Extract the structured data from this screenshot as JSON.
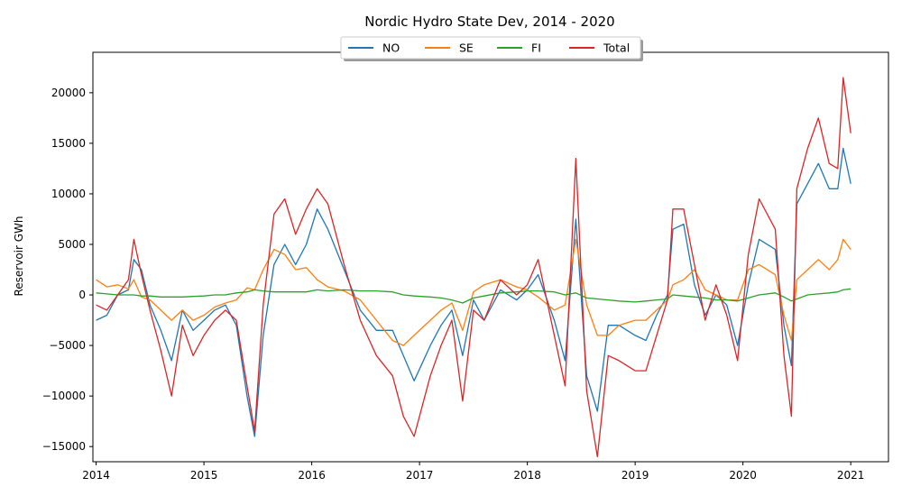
{
  "chart_data": {
    "type": "line",
    "title": "Nordic Hydro State Dev, 2014 - 2020",
    "xlabel": "",
    "ylabel": "Reservoir GWh",
    "xlim": [
      2013.97,
      2021.35
    ],
    "ylim": [
      -16500,
      24000
    ],
    "x_ticks": [
      2014,
      2015,
      2016,
      2017,
      2018,
      2019,
      2020,
      2021
    ],
    "x_tick_labels": [
      "2014",
      "2015",
      "2016",
      "2017",
      "2018",
      "2019",
      "2020",
      "2021"
    ],
    "y_ticks": [
      -15000,
      -10000,
      -5000,
      0,
      5000,
      10000,
      15000,
      20000
    ],
    "y_tick_labels": [
      "−15000",
      "−10000",
      "−5000",
      "0",
      "5000",
      "10000",
      "15000",
      "20000"
    ],
    "grid": false,
    "legend": "upper-center",
    "x": [
      2014.0,
      2014.1,
      2014.2,
      2014.3,
      2014.35,
      2014.42,
      2014.5,
      2014.6,
      2014.7,
      2014.8,
      2014.9,
      2015.0,
      2015.1,
      2015.2,
      2015.3,
      2015.4,
      2015.47,
      2015.55,
      2015.65,
      2015.75,
      2015.85,
      2015.95,
      2016.05,
      2016.15,
      2016.3,
      2016.45,
      2016.6,
      2016.75,
      2016.85,
      2016.95,
      2017.1,
      2017.2,
      2017.3,
      2017.4,
      2017.5,
      2017.6,
      2017.75,
      2017.9,
      2018.0,
      2018.1,
      2018.25,
      2018.35,
      2018.45,
      2018.55,
      2018.65,
      2018.75,
      2018.85,
      2019.0,
      2019.1,
      2019.2,
      2019.3,
      2019.35,
      2019.45,
      2019.55,
      2019.65,
      2019.75,
      2019.85,
      2019.95,
      2020.05,
      2020.15,
      2020.3,
      2020.38,
      2020.45,
      2020.5,
      2020.6,
      2020.7,
      2020.8,
      2020.88,
      2020.93,
      2021.0
    ],
    "series": [
      {
        "name": "NO",
        "color": "#1f77b4",
        "values": [
          -2500,
          -2000,
          0,
          500,
          3500,
          2500,
          -1000,
          -3500,
          -6500,
          -1500,
          -3500,
          -2500,
          -1500,
          -1000,
          -3000,
          -10000,
          -14000,
          -4000,
          3000,
          5000,
          3000,
          5000,
          8500,
          6500,
          2500,
          -1500,
          -3500,
          -3500,
          -6000,
          -8500,
          -5000,
          -3000,
          -1500,
          -6000,
          -500,
          -2500,
          500,
          -500,
          500,
          2000,
          -2500,
          -6500,
          7500,
          -8000,
          -11500,
          -3000,
          -3000,
          -4000,
          -4500,
          -2000,
          0,
          6500,
          7000,
          1000,
          -2000,
          0,
          -1000,
          -5000,
          1000,
          5500,
          4500,
          -3000,
          -7000,
          9000,
          11000,
          13000,
          10500,
          10500,
          14500,
          11000
        ]
      },
      {
        "name": "SE",
        "color": "#ff7f0e",
        "values": [
          1500,
          800,
          1000,
          600,
          1500,
          -200,
          -500,
          -1500,
          -2500,
          -1500,
          -2500,
          -2000,
          -1200,
          -800,
          -500,
          700,
          500,
          2500,
          4500,
          4000,
          2500,
          2700,
          1500,
          800,
          400,
          -500,
          -2500,
          -4500,
          -5000,
          -4000,
          -2500,
          -1500,
          -800,
          -3500,
          300,
          1000,
          1500,
          800,
          500,
          -200,
          -1500,
          -1000,
          5500,
          -1000,
          -4000,
          -4000,
          -3000,
          -2500,
          -2500,
          -1500,
          -500,
          1000,
          1500,
          2500,
          500,
          0,
          -500,
          -500,
          2500,
          3000,
          2000,
          -2000,
          -4500,
          1500,
          2500,
          3500,
          2500,
          3500,
          5500,
          4500
        ]
      },
      {
        "name": "FI",
        "color": "#2ca02c",
        "values": [
          200,
          100,
          0,
          0,
          0,
          -100,
          -100,
          -200,
          -200,
          -200,
          -150,
          -100,
          0,
          0,
          200,
          300,
          500,
          400,
          300,
          300,
          300,
          300,
          500,
          400,
          500,
          400,
          400,
          300,
          0,
          -100,
          -200,
          -300,
          -500,
          -800,
          -300,
          -100,
          200,
          300,
          400,
          400,
          300,
          0,
          200,
          -300,
          -400,
          -500,
          -600,
          -700,
          -600,
          -500,
          -400,
          0,
          -100,
          -200,
          -300,
          -500,
          -500,
          -600,
          -300,
          0,
          200,
          -200,
          -600,
          -400,
          0,
          100,
          200,
          300,
          500,
          600
        ]
      },
      {
        "name": "Total",
        "color": "#d62728",
        "values": [
          -1000,
          -1500,
          0,
          1500,
          5500,
          2000,
          -1500,
          -5500,
          -10000,
          -3000,
          -6000,
          -4000,
          -2500,
          -1500,
          -2500,
          -9000,
          -13500,
          -1000,
          8000,
          9500,
          6000,
          8500,
          10500,
          9000,
          3000,
          -2500,
          -6000,
          -8000,
          -12000,
          -14000,
          -8000,
          -5000,
          -2500,
          -10500,
          -1500,
          -2500,
          1500,
          0,
          1000,
          3500,
          -4000,
          -9000,
          13500,
          -9500,
          -16000,
          -6000,
          -6500,
          -7500,
          -7500,
          -4000,
          -500,
          8500,
          8500,
          3000,
          -2500,
          1000,
          -2000,
          -6500,
          4000,
          9500,
          6500,
          -6000,
          -12000,
          10500,
          14500,
          17500,
          13000,
          12500,
          21500,
          16000
        ]
      }
    ]
  }
}
